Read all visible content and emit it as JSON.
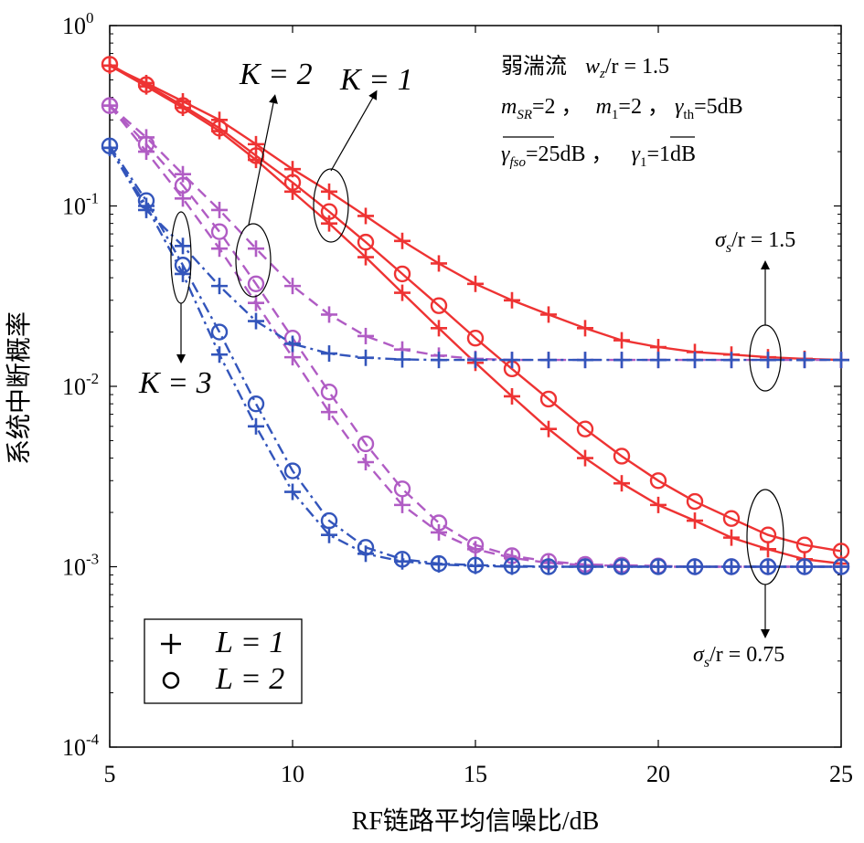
{
  "chart_data": {
    "type": "line",
    "xlabel": "RF链路平均信噪比/dB",
    "ylabel": "系统中断概率",
    "xlim": [
      5,
      25
    ],
    "ylim": [
      0.0001,
      1
    ],
    "yscale": "log",
    "x_ticks": [
      "5",
      "10",
      "15",
      "20",
      "25"
    ],
    "y_ticks": [
      {
        "base": "10",
        "exp": "0"
      },
      {
        "base": "10",
        "exp": "-1"
      },
      {
        "base": "10",
        "exp": "-2"
      },
      {
        "base": "10",
        "exp": "-3"
      },
      {
        "base": "10",
        "exp": "-4"
      }
    ],
    "legend": {
      "position": "bottom-left",
      "entries": [
        {
          "marker": "plus",
          "label": "L = 1"
        },
        {
          "marker": "circle",
          "label": "L = 2"
        }
      ]
    },
    "annotations": {
      "title_line1": "弱湍流",
      "ws_label": "w",
      "ws_sub": "z",
      "ws_value": "/r = 1.5",
      "line2_a": "m",
      "line2_a_sub": "SR",
      "line2_a_val": "=2 ，",
      "line2_b": "m",
      "line2_b_sub": "1",
      "line2_b_val": "=2 ，",
      "line2_c": "γ",
      "line2_c_sub": "th",
      "line2_c_val": "=5dB",
      "line3_a": "γ",
      "line3_a_sub": "fso",
      "line3_a_val": "=25dB ，",
      "line3_b": "γ",
      "line3_b_sub": "1",
      "line3_b_val": "=1dB",
      "k1": "K = 1",
      "k2": "K = 2",
      "k3": "K = 3",
      "sigma_hi_sym": "σ",
      "sigma_hi_sub": "s",
      "sigma_hi_val": "/r = 1.5",
      "sigma_lo_sym": "σ",
      "sigma_lo_sub": "s",
      "sigma_lo_val": "/r = 0.75"
    },
    "colors": {
      "K1": "#ee3333",
      "K2": "#b05cc4",
      "K3": "#3355bb"
    },
    "x": [
      5,
      6,
      7,
      8,
      9,
      10,
      11,
      12,
      13,
      14,
      15,
      16,
      17,
      18,
      19,
      20,
      21,
      22,
      23,
      24,
      25
    ],
    "series": [
      {
        "K": 1,
        "L": 1,
        "sigma": 1.5,
        "marker": "plus",
        "style": "solid",
        "values": [
          0.6,
          0.48,
          0.38,
          0.3,
          0.22,
          0.16,
          0.12,
          0.088,
          0.064,
          0.048,
          0.037,
          0.03,
          0.025,
          0.021,
          0.018,
          0.0165,
          0.0155,
          0.015,
          0.0145,
          0.0142,
          0.014
        ]
      },
      {
        "K": 1,
        "L": 2,
        "sigma": 0.75,
        "marker": "circle",
        "style": "solid",
        "values": [
          0.61,
          0.47,
          0.36,
          0.27,
          0.19,
          0.135,
          0.093,
          0.063,
          0.042,
          0.028,
          0.0185,
          0.0125,
          0.0085,
          0.0058,
          0.0041,
          0.003,
          0.0023,
          0.00185,
          0.0015,
          0.00132,
          0.00122
        ]
      },
      {
        "K": 1,
        "L": 1,
        "sigma": 0.75,
        "marker": "plus",
        "style": "solid",
        "values": [
          0.6,
          0.46,
          0.35,
          0.26,
          0.18,
          0.12,
          0.08,
          0.052,
          0.033,
          0.021,
          0.0135,
          0.0088,
          0.0058,
          0.004,
          0.0029,
          0.0022,
          0.0018,
          0.00145,
          0.00125,
          0.0011,
          0.00104
        ]
      },
      {
        "K": 2,
        "L": 1,
        "sigma": 1.5,
        "marker": "plus",
        "style": "dashed",
        "values": [
          0.36,
          0.24,
          0.15,
          0.095,
          0.058,
          0.036,
          0.025,
          0.019,
          0.016,
          0.0148,
          0.0142,
          0.014,
          0.014,
          0.014,
          0.014,
          0.014,
          0.014,
          0.014,
          0.014,
          0.014,
          0.014
        ]
      },
      {
        "K": 2,
        "L": 2,
        "sigma": 0.75,
        "marker": "circle",
        "style": "dashed",
        "values": [
          0.36,
          0.22,
          0.13,
          0.072,
          0.037,
          0.0185,
          0.0093,
          0.0048,
          0.0027,
          0.00175,
          0.00132,
          0.00115,
          0.00107,
          0.00103,
          0.00102,
          0.00101,
          0.001,
          0.001,
          0.001,
          0.001,
          0.001
        ]
      },
      {
        "K": 2,
        "L": 1,
        "sigma": 0.75,
        "marker": "plus",
        "style": "dashed",
        "values": [
          0.36,
          0.2,
          0.11,
          0.058,
          0.029,
          0.0145,
          0.0072,
          0.0038,
          0.0022,
          0.00155,
          0.00125,
          0.00112,
          0.00105,
          0.00102,
          0.00101,
          0.001,
          0.001,
          0.001,
          0.001,
          0.001,
          0.001
        ]
      },
      {
        "K": 3,
        "L": 1,
        "sigma": 1.5,
        "marker": "plus",
        "style": "dashdot",
        "values": [
          0.21,
          0.095,
          0.06,
          0.036,
          0.023,
          0.0172,
          0.0152,
          0.0144,
          0.0141,
          0.014,
          0.014,
          0.014,
          0.014,
          0.014,
          0.014,
          0.014,
          0.014,
          0.014,
          0.014,
          0.014,
          0.014
        ]
      },
      {
        "K": 3,
        "L": 2,
        "sigma": 0.75,
        "marker": "circle",
        "style": "dashdot",
        "values": [
          0.215,
          0.107,
          0.047,
          0.02,
          0.008,
          0.0034,
          0.0018,
          0.00128,
          0.0011,
          0.00104,
          0.00102,
          0.00101,
          0.001,
          0.001,
          0.001,
          0.001,
          0.001,
          0.001,
          0.001,
          0.001,
          0.001
        ]
      },
      {
        "K": 3,
        "L": 1,
        "sigma": 0.75,
        "marker": "plus",
        "style": "dashdot",
        "values": [
          0.21,
          0.1,
          0.042,
          0.015,
          0.006,
          0.0026,
          0.0015,
          0.00118,
          0.00107,
          0.00103,
          0.00101,
          0.001,
          0.001,
          0.001,
          0.001,
          0.001,
          0.001,
          0.001,
          0.001,
          0.001,
          0.001
        ]
      }
    ]
  }
}
